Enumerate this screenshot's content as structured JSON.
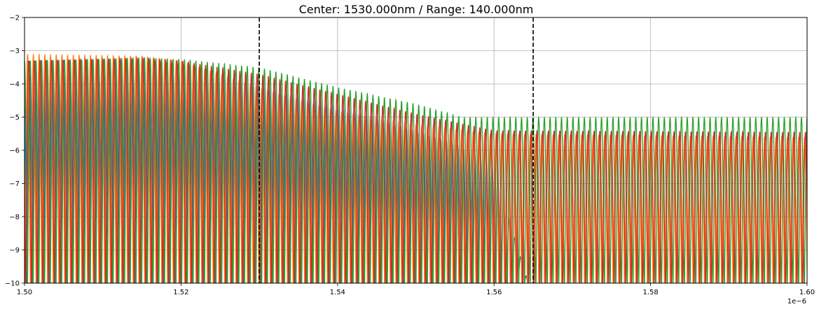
{
  "chart_data": {
    "type": "line",
    "title": "Center: 1530.000nm / Range: 140.000nm",
    "xlabel": "",
    "ylabel": "",
    "x_offset_text": "1e−6",
    "xlim": [
      1.5,
      1.6
    ],
    "ylim": [
      -10,
      -2
    ],
    "grid": true,
    "x_ticks": [
      1.5,
      1.52,
      1.54,
      1.56,
      1.58,
      1.6
    ],
    "x_tick_labels": [
      "1.50",
      "1.52",
      "1.54",
      "1.56",
      "1.58",
      "1.60"
    ],
    "y_ticks": [
      -10,
      -9,
      -8,
      -7,
      -6,
      -5,
      -4,
      -3,
      -2
    ],
    "y_tick_labels": [
      "−10",
      "−9",
      "−8",
      "−7",
      "−6",
      "−5",
      "−4",
      "−3",
      "−2"
    ],
    "vlines": [
      {
        "x": 1.53,
        "style": "dashed",
        "color": "#000000"
      },
      {
        "x": 1.565,
        "style": "dashed",
        "color": "#000000"
      }
    ],
    "series": [
      {
        "color": "#1f77b4",
        "period": 0.00073,
        "phase": 0.15,
        "envelope": [
          [
            1.5,
            -3.3
          ],
          [
            1.515,
            -3.25
          ],
          [
            1.52,
            -3.4
          ],
          [
            1.53,
            -3.9
          ],
          [
            1.54,
            -4.6
          ],
          [
            1.55,
            -5.4
          ],
          [
            1.555,
            -5.8
          ],
          [
            1.56,
            -6.5
          ],
          [
            1.565,
            -10.5
          ],
          [
            1.6,
            -10.5
          ]
        ]
      },
      {
        "color": "#ff7f0e",
        "period": 0.00073,
        "phase": 0.45,
        "envelope": [
          [
            1.5,
            -3.1
          ],
          [
            1.515,
            -3.15
          ],
          [
            1.52,
            -3.3
          ],
          [
            1.53,
            -4.1
          ],
          [
            1.54,
            -4.8
          ],
          [
            1.55,
            -5.2
          ],
          [
            1.56,
            -5.5
          ],
          [
            1.6,
            -5.6
          ]
        ]
      },
      {
        "color": "#2ca02c",
        "period": 0.00073,
        "phase": 0.0,
        "envelope": [
          [
            1.5,
            -3.3
          ],
          [
            1.515,
            -3.2
          ],
          [
            1.52,
            -3.25
          ],
          [
            1.53,
            -3.5
          ],
          [
            1.54,
            -4.1
          ],
          [
            1.55,
            -4.6
          ],
          [
            1.556,
            -5.0
          ],
          [
            1.6,
            -5.0
          ]
        ]
      },
      {
        "color": "#d62728",
        "period": 0.00073,
        "phase": 0.3,
        "envelope": [
          [
            1.5,
            -3.3
          ],
          [
            1.515,
            -3.2
          ],
          [
            1.52,
            -3.3
          ],
          [
            1.53,
            -3.7
          ],
          [
            1.54,
            -4.3
          ],
          [
            1.55,
            -4.9
          ],
          [
            1.56,
            -5.4
          ],
          [
            1.6,
            -5.45
          ]
        ]
      }
    ]
  }
}
